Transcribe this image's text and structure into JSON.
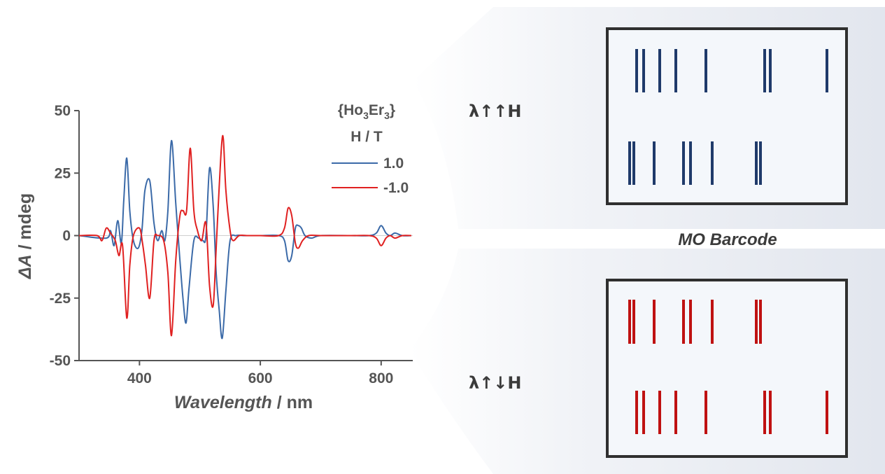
{
  "chart_data": {
    "type": "line",
    "xlabel_italic": "Wavelength",
    "xlabel_unit": " / nm",
    "ylabel_symbol": "ΔA",
    "ylabel_unit": " / mdeg",
    "xlim": [
      300,
      850
    ],
    "ylim": [
      -50,
      50
    ],
    "xticks": [
      400,
      600,
      800
    ],
    "xtick_labels": [
      "400",
      "600",
      "800"
    ],
    "yticks": [
      50,
      25,
      0,
      -25,
      -50
    ],
    "ytick_labels": [
      "50",
      "25",
      "0",
      "-25",
      "-50"
    ],
    "legend_title_base": "{Ho",
    "legend_title_sub1": "3",
    "legend_title_mid": "Er",
    "legend_title_sub2": "3",
    "legend_title_end": "}",
    "legend_subtitle": "H / T",
    "legend_position": "top-right",
    "grid": false,
    "series": [
      {
        "name": "1.0",
        "color": "#3b6aa8",
        "x": [
          300,
          345,
          352,
          358,
          364,
          370,
          374,
          379,
          384,
          390,
          398,
          404,
          409,
          417,
          424,
          430,
          437,
          442,
          447,
          453,
          460,
          467,
          472,
          477,
          482,
          490,
          498,
          505,
          510,
          516,
          522,
          527,
          532,
          537,
          543,
          550,
          560,
          575,
          600,
          630,
          640,
          646,
          652,
          658,
          663,
          668,
          674,
          685,
          700,
          750,
          780,
          792,
          800,
          808,
          815,
          823,
          835,
          850
        ],
        "y": [
          0,
          -1,
          2,
          -4,
          6,
          -3,
          14,
          31,
          10,
          -2,
          -5,
          2,
          18,
          22,
          5,
          -2,
          2,
          -2,
          10,
          38,
          13,
          -10,
          -25,
          -35,
          -21,
          -2,
          -1,
          -2,
          0,
          27,
          12,
          -15,
          -30,
          -41,
          -22,
          -2,
          0,
          0,
          0,
          0,
          -2,
          -10,
          -8,
          3,
          4,
          3,
          0,
          -1,
          0,
          0,
          0,
          1,
          4,
          1,
          0,
          1,
          0,
          0
        ]
      },
      {
        "name": "-1.0",
        "color": "#e02020",
        "x": [
          300,
          330,
          338,
          345,
          352,
          360,
          366,
          372,
          379,
          384,
          390,
          400,
          405,
          410,
          417,
          424,
          430,
          440,
          447,
          453,
          460,
          467,
          472,
          478,
          484,
          490,
          496,
          503,
          510,
          516,
          522,
          527,
          532,
          538,
          543,
          550,
          555,
          565,
          580,
          600,
          630,
          640,
          646,
          652,
          658,
          663,
          670,
          680,
          700,
          750,
          780,
          792,
          800,
          808,
          815,
          823,
          835,
          850
        ],
        "y": [
          0,
          0,
          -2,
          3,
          1,
          -2,
          -8,
          -4,
          -33,
          -12,
          0,
          3,
          -3,
          -12,
          -25,
          -2,
          0,
          -2,
          -15,
          -40,
          -10,
          8,
          10,
          10,
          35,
          10,
          2,
          -2,
          5,
          -20,
          -28,
          -5,
          20,
          40,
          18,
          2,
          -2,
          0,
          0,
          0,
          0,
          3,
          11,
          8,
          -3,
          -5,
          -2,
          0,
          0,
          0,
          0,
          -1,
          -4,
          -1,
          0,
          -1,
          0,
          0
        ]
      }
    ]
  },
  "diagram": {
    "caption": "MO Barcode",
    "top_label": "λ↑↑H",
    "bottom_label": "λ↑↓H",
    "bar_color_blue": "#1f3a6a",
    "bar_color_red": "#bf1111"
  }
}
